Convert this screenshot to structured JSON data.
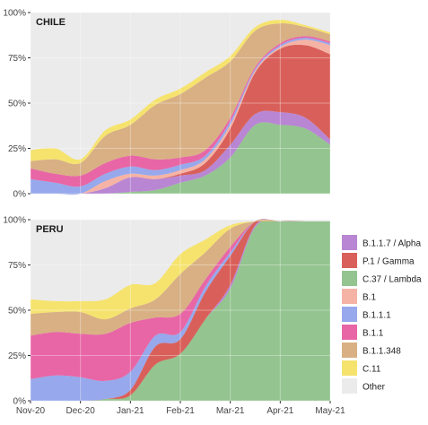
{
  "chart_data": {
    "type": "area",
    "stacking": "percent",
    "x": [
      "Nov-20",
      "Dec-20",
      "Jan-21",
      "Feb-21",
      "Mar-21",
      "Apr-21",
      "May-21"
    ],
    "yticks": [
      "0%",
      "25%",
      "50%",
      "75%",
      "100%"
    ],
    "ylim": [
      0,
      100
    ],
    "grid": true,
    "legend_position": "right",
    "series_order_top_to_bottom": [
      "B.1.1.7 / Alpha",
      "P.1 / Gamma",
      "C.37 / Lambda",
      "B.1",
      "B.1.1.1",
      "B.1.1",
      "B.1.1.348",
      "C.11",
      "Other"
    ],
    "colors": {
      "B.1.1.7 / Alpha": "#b886d3",
      "P.1 / Gamma": "#d9605a",
      "C.37 / Lambda": "#94c48f",
      "B.1": "#f5b3a5",
      "B.1.1.1": "#97a8ec",
      "B.1.1": "#e866a6",
      "B.1.1.348": "#d8b084",
      "C.11": "#f6e36e",
      "Other": "#ebebeb"
    },
    "panels": [
      {
        "title": "CHILE",
        "x_months": [
          0,
          0.5,
          1,
          1.5,
          2,
          2.5,
          3,
          3.5,
          4,
          4.5,
          5,
          5.5,
          6
        ],
        "series": [
          {
            "name": "C.37 / Lambda",
            "values": [
              0,
              0,
              0,
              0,
              1,
              2,
              6,
              10,
              20,
              38,
              38,
              36,
              27
            ]
          },
          {
            "name": "B.1.1.7 / Alpha",
            "values": [
              0,
              0,
              0,
              3,
              8,
              6,
              4,
              3,
              7,
              6,
              7,
              6,
              3
            ]
          },
          {
            "name": "P.1 / Gamma",
            "values": [
              0,
              0,
              0,
              0,
              0,
              0,
              1,
              4,
              9,
              23,
              35,
              40,
              47
            ]
          },
          {
            "name": "B.1",
            "values": [
              0,
              0,
              0,
              4,
              2,
              2,
              2,
              2,
              2,
              1,
              1,
              3,
              5
            ]
          },
          {
            "name": "B.1.1.1",
            "values": [
              8,
              6,
              4,
              4,
              4,
              3,
              3,
              2,
              2,
              1,
              1,
              1,
              1
            ]
          },
          {
            "name": "B.1.1",
            "values": [
              6,
              5,
              6,
              6,
              6,
              6,
              4,
              3,
              2,
              1,
              1,
              1,
              1
            ]
          },
          {
            "name": "B.1.1.348",
            "values": [
              4,
              8,
              7,
              15,
              17,
              30,
              35,
              40,
              31,
              20,
              11,
              5,
              4
            ]
          },
          {
            "name": "C.11",
            "values": [
              6,
              6,
              2,
              3,
              3,
              3,
              3,
              3,
              3,
              2,
              2,
              1,
              1
            ]
          },
          {
            "name": "Other",
            "values": [
              70,
              75,
              81,
              65,
              59,
              48,
              42,
              33,
              24,
              8,
              4,
              7,
              11
            ]
          }
        ]
      },
      {
        "title": "PERU",
        "x_months": [
          0,
          0.5,
          1,
          1.5,
          2,
          2.5,
          3,
          3.5,
          4,
          4.5,
          5,
          5.5,
          6
        ],
        "series": [
          {
            "name": "C.37 / Lambda",
            "values": [
              0,
              0,
              0,
              1,
              3,
              20,
              26,
              45,
              62,
              96,
              99,
              99,
              99
            ]
          },
          {
            "name": "B.1.1.7 / Alpha",
            "values": [
              0,
              0,
              0,
              0,
              0,
              0,
              0,
              0,
              2,
              1,
              0,
              0,
              0
            ]
          },
          {
            "name": "P.1 / Gamma",
            "values": [
              0,
              0,
              0,
              0,
              3,
              10,
              8,
              15,
              16,
              2,
              0,
              0,
              0
            ]
          },
          {
            "name": "B.1",
            "values": [
              0,
              0,
              0,
              0,
              0,
              0,
              0,
              0,
              0,
              0,
              0,
              0,
              0
            ]
          },
          {
            "name": "B.1.1.1",
            "values": [
              12,
              14,
              13,
              10,
              10,
              6,
              4,
              3,
              2,
              0,
              0,
              0,
              0
            ]
          },
          {
            "name": "B.1.1",
            "values": [
              24,
              24,
              24,
              26,
              27,
              10,
              10,
              4,
              3,
              0,
              0,
              0,
              0
            ]
          },
          {
            "name": "B.1.1.348",
            "values": [
              12,
              11,
              12,
              8,
              8,
              10,
              22,
              15,
              10,
              0,
              0,
              0,
              0
            ]
          },
          {
            "name": "C.11",
            "values": [
              8,
              6,
              6,
              11,
              13,
              9,
              11,
              7,
              2,
              0,
              0,
              0,
              0
            ]
          },
          {
            "name": "Other",
            "values": [
              44,
              45,
              45,
              44,
              36,
              35,
              19,
              11,
              3,
              1,
              1,
              1,
              1
            ]
          }
        ]
      }
    ]
  }
}
